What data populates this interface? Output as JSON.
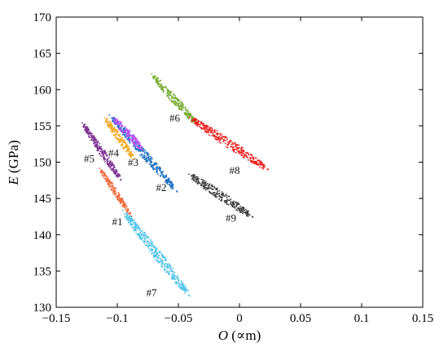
{
  "chart_data": {
    "type": "scatter",
    "xlim": [
      -0.15,
      0.15
    ],
    "ylim": [
      130,
      170
    ],
    "xticks": [
      "−0.15",
      "−0.1",
      "−0.05",
      "0",
      "0.05",
      "0.1",
      "0.15"
    ],
    "yticks": [
      "130",
      "135",
      "140",
      "145",
      "150",
      "155",
      "160",
      "165",
      "170"
    ],
    "xlabel_var": "O",
    "xlabel_unit": "(∝m)",
    "ylabel_var": "E",
    "ylabel_unit": "(GPa)",
    "grid": false,
    "series": [
      {
        "label": "#1",
        "color": "#f26a3d",
        "start": [
          -0.114,
          149.0
        ],
        "end": [
          -0.09,
          142.9
        ],
        "width": 0.004
      },
      {
        "label": "#2",
        "color": "#1f73c3",
        "start": [
          -0.105,
          156.2
        ],
        "end": [
          -0.054,
          146.5
        ],
        "width": 0.006
      },
      {
        "label": "#3",
        "color": "#b84df2",
        "start": [
          -0.103,
          156.0
        ],
        "end": [
          -0.081,
          152.0
        ],
        "width": 0.006
      },
      {
        "label": "#4",
        "color": "#f0a821",
        "start": [
          -0.11,
          156.0
        ],
        "end": [
          -0.088,
          150.8
        ],
        "width": 0.005
      },
      {
        "label": "#5",
        "color": "#7c2e90",
        "start": [
          -0.128,
          155.2
        ],
        "end": [
          -0.099,
          148.0
        ],
        "width": 0.005
      },
      {
        "label": "#6",
        "color": "#77ac30",
        "start": [
          -0.071,
          162.0
        ],
        "end": [
          -0.037,
          155.6
        ],
        "width": 0.006
      },
      {
        "label": "#7",
        "color": "#4cc3ea",
        "start": [
          -0.094,
          143.0
        ],
        "end": [
          -0.044,
          132.2
        ],
        "width": 0.007
      },
      {
        "label": "#8",
        "color": "#ee1c1c",
        "start": [
          -0.039,
          156.0
        ],
        "end": [
          0.02,
          149.4
        ],
        "width": 0.007
      },
      {
        "label": "#9",
        "color": "#3c3c3c",
        "start": [
          -0.04,
          148.2
        ],
        "end": [
          0.008,
          142.8
        ],
        "width": 0.007
      }
    ],
    "labels": [
      {
        "text": "#1",
        "x": -0.1,
        "y": 141.3
      },
      {
        "text": "#2",
        "x": -0.064,
        "y": 146.0
      },
      {
        "text": "#3",
        "x": -0.087,
        "y": 149.5
      },
      {
        "text": "#4",
        "x": -0.103,
        "y": 150.8
      },
      {
        "text": "#5",
        "x": -0.123,
        "y": 150.0
      },
      {
        "text": "#6",
        "x": -0.053,
        "y": 155.6
      },
      {
        "text": "#7",
        "x": -0.072,
        "y": 131.5
      },
      {
        "text": "#8",
        "x": -0.004,
        "y": 148.4
      },
      {
        "text": "#9",
        "x": -0.007,
        "y": 141.8
      }
    ]
  }
}
